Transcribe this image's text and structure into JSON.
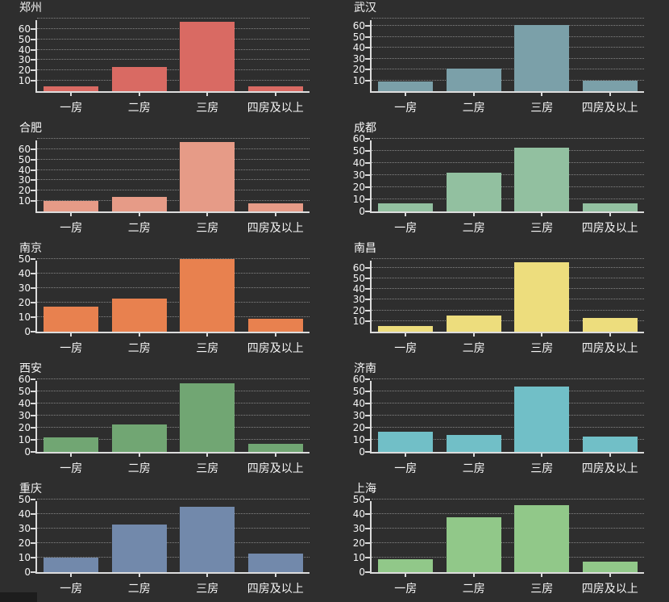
{
  "page": {
    "background": "#2e2e2e",
    "text_color": "#f5f5f5",
    "grid_color": "rgba(255,255,255,0.42)",
    "spine_color": "#dcdcdc",
    "grid_style": "dotted",
    "corner_fragment_color": "#1d1d1d",
    "layout": "5x2 grid of bar charts"
  },
  "chart_data": [
    {
      "type": "bar",
      "title": "郑州",
      "color": "#d96a63",
      "categories": [
        "一房",
        "二房",
        "三房",
        "四房及以上"
      ],
      "values": [
        5,
        23,
        67,
        5
      ],
      "ylim": [
        0,
        70
      ],
      "yticks": [
        10,
        20,
        30,
        40,
        50,
        60
      ],
      "grid_at_top": true,
      "grid": "dotted",
      "legend_position": "none"
    },
    {
      "type": "bar",
      "title": "武汉",
      "color": "#7ba0a9",
      "categories": [
        "一房",
        "二房",
        "三房",
        "四房及以上"
      ],
      "values": [
        9,
        21,
        61,
        10
      ],
      "ylim": [
        0,
        67
      ],
      "yticks": [
        10,
        20,
        30,
        40,
        50,
        60
      ],
      "grid_at_top": true,
      "grid": "dotted",
      "legend_position": "none"
    },
    {
      "type": "bar",
      "title": "合肥",
      "color": "#e69b87",
      "categories": [
        "一房",
        "二房",
        "三房",
        "四房及以上"
      ],
      "values": [
        10,
        14,
        67,
        8
      ],
      "ylim": [
        0,
        70
      ],
      "yticks": [
        10,
        20,
        30,
        40,
        50,
        60
      ],
      "grid_at_top": true,
      "grid": "dotted",
      "legend_position": "none"
    },
    {
      "type": "bar",
      "title": "成都",
      "color": "#92c0a0",
      "categories": [
        "一房",
        "二房",
        "三房",
        "四房及以上"
      ],
      "values": [
        7,
        32,
        53,
        7
      ],
      "ylim": [
        0,
        60
      ],
      "yticks": [
        0,
        10,
        20,
        30,
        40,
        50,
        60
      ],
      "grid_at_top": false,
      "grid": "dotted",
      "legend_position": "none"
    },
    {
      "type": "bar",
      "title": "南京",
      "color": "#e8814f",
      "categories": [
        "一房",
        "二房",
        "三房",
        "四房及以上"
      ],
      "values": [
        17,
        23,
        50,
        9
      ],
      "ylim": [
        0,
        50
      ],
      "yticks": [
        0,
        10,
        20,
        30,
        40,
        50
      ],
      "grid_at_top": false,
      "grid": "dotted",
      "legend_position": "none"
    },
    {
      "type": "bar",
      "title": "南昌",
      "color": "#eddd7d",
      "categories": [
        "一房",
        "二房",
        "三房",
        "四房及以上"
      ],
      "values": [
        5,
        15,
        65,
        13
      ],
      "ylim": [
        0,
        68
      ],
      "yticks": [
        10,
        20,
        30,
        40,
        50,
        60
      ],
      "grid_at_top": true,
      "grid": "dotted",
      "legend_position": "none"
    },
    {
      "type": "bar",
      "title": "西安",
      "color": "#71a673",
      "categories": [
        "一房",
        "二房",
        "三房",
        "四房及以上"
      ],
      "values": [
        12,
        23,
        57,
        7
      ],
      "ylim": [
        0,
        60
      ],
      "yticks": [
        0,
        10,
        20,
        30,
        40,
        50,
        60
      ],
      "grid_at_top": false,
      "grid": "dotted",
      "legend_position": "none"
    },
    {
      "type": "bar",
      "title": "济南",
      "color": "#71bfc7",
      "categories": [
        "一房",
        "二房",
        "三房",
        "四房及以上"
      ],
      "values": [
        17,
        14,
        54,
        13
      ],
      "ylim": [
        0,
        60
      ],
      "yticks": [
        0,
        10,
        20,
        30,
        40,
        50,
        60
      ],
      "grid_at_top": false,
      "grid": "dotted",
      "legend_position": "none"
    },
    {
      "type": "bar",
      "title": "重庆",
      "color": "#7289ab",
      "categories": [
        "一房",
        "二房",
        "三房",
        "四房及以上"
      ],
      "values": [
        10,
        33,
        45,
        13
      ],
      "ylim": [
        0,
        50
      ],
      "yticks": [
        0,
        10,
        20,
        30,
        40,
        50
      ],
      "grid_at_top": false,
      "grid": "dotted",
      "legend_position": "none"
    },
    {
      "type": "bar",
      "title": "上海",
      "color": "#91c889",
      "categories": [
        "一房",
        "二房",
        "三房",
        "四房及以上"
      ],
      "values": [
        9,
        38,
        46,
        7
      ],
      "ylim": [
        0,
        50
      ],
      "yticks": [
        0,
        10,
        20,
        30,
        40,
        50
      ],
      "grid_at_top": false,
      "grid": "dotted",
      "legend_position": "none"
    }
  ]
}
